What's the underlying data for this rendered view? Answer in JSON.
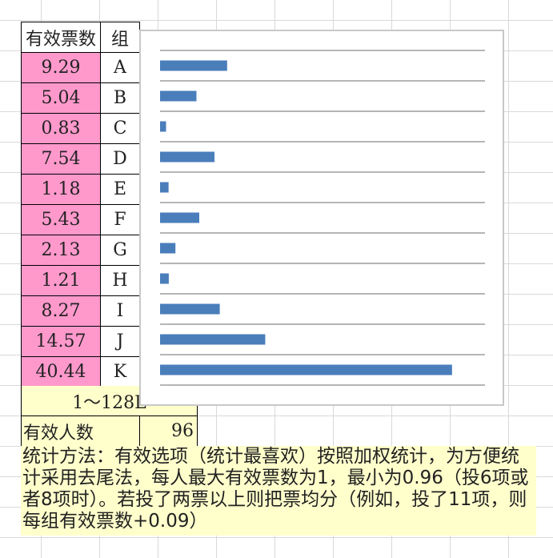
{
  "table": {
    "header_votes": "有效票数",
    "header_group": "组",
    "rows": [
      {
        "value": "9.29",
        "group": "A"
      },
      {
        "value": "5.04",
        "group": "B"
      },
      {
        "value": "0.83",
        "group": "C"
      },
      {
        "value": "7.54",
        "group": "D"
      },
      {
        "value": "1.18",
        "group": "E"
      },
      {
        "value": "5.43",
        "group": "F"
      },
      {
        "value": "2.13",
        "group": "G"
      },
      {
        "value": "1.21",
        "group": "H"
      },
      {
        "value": "8.27",
        "group": "I"
      },
      {
        "value": "14.57",
        "group": "J"
      },
      {
        "value": "40.44",
        "group": "K"
      }
    ],
    "range_label": "1～128L",
    "people_label": "有效人数",
    "people_value": "96"
  },
  "note": "统计方法：有效选项（统计最喜欢）按照加权统计，为方便统计采用去尾法，每人最大有效票数为1，最小为0.96（投6项或者8项时）。若投了两票以上则把票均分（例如，投了11项，则每组有效票数+0.09）",
  "colors": {
    "bar": "#4a7ebb",
    "value_fill": "#ff99cc",
    "note_fill": "#ffffcc"
  },
  "chart_data": {
    "type": "bar",
    "orientation": "horizontal",
    "categories": [
      "A",
      "B",
      "C",
      "D",
      "E",
      "F",
      "G",
      "H",
      "I",
      "J",
      "K"
    ],
    "values": [
      9.29,
      5.04,
      0.83,
      7.54,
      1.18,
      5.43,
      2.13,
      1.21,
      8.27,
      14.57,
      40.44
    ],
    "xlim": [
      0,
      45
    ],
    "grid": true,
    "title": "",
    "xlabel": "",
    "ylabel": ""
  }
}
